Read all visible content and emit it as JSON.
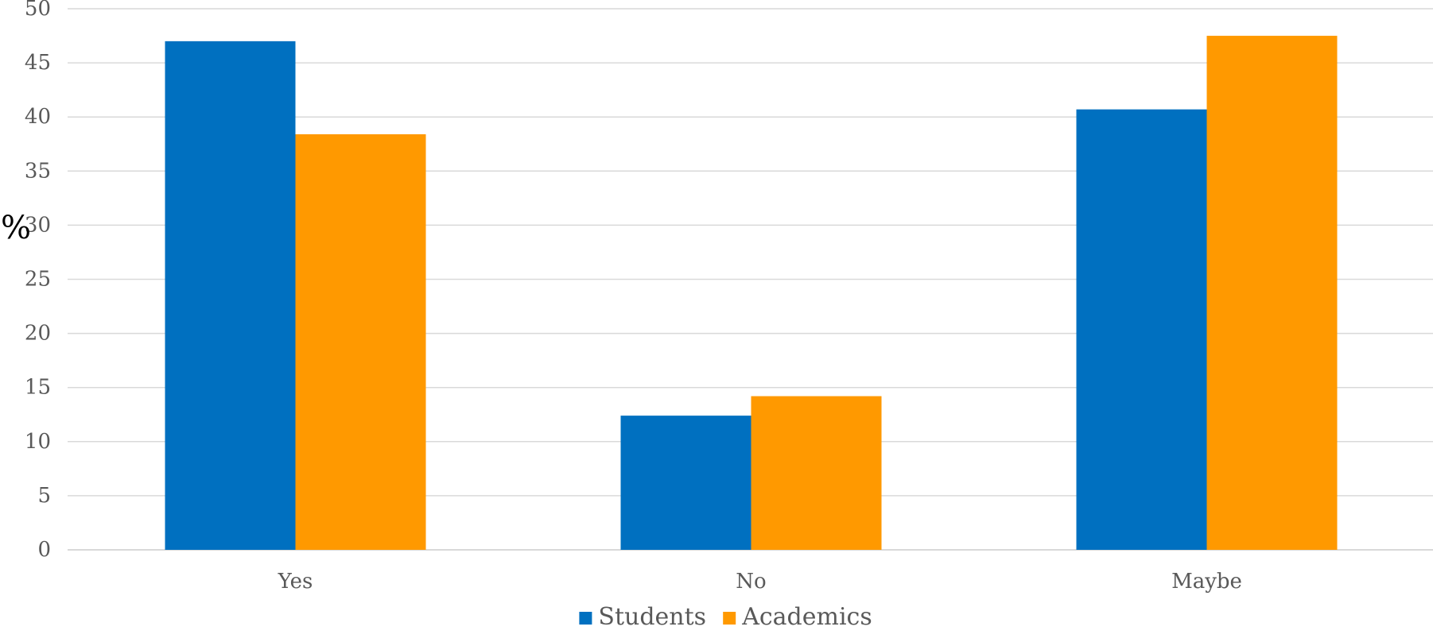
{
  "chart_data": {
    "type": "bar",
    "title": "",
    "xlabel": "",
    "ylabel": "%",
    "categories": [
      "Yes",
      "No",
      "Maybe"
    ],
    "series": [
      {
        "name": "Students",
        "values": [
          47,
          12.4,
          40.7
        ],
        "color": "#0070C0"
      },
      {
        "name": "Academics",
        "values": [
          38.4,
          14.2,
          47.5
        ],
        "color": "#FF9900"
      }
    ],
    "ylim": [
      0,
      50
    ],
    "yticks": [
      "0",
      "5",
      "10",
      "15",
      "20",
      "25",
      "30",
      "35",
      "40",
      "45",
      "50"
    ],
    "grid": true,
    "legend": "bottom-center",
    "gridline_color": "#D9D9D9",
    "tick_label_color": "#595959"
  }
}
